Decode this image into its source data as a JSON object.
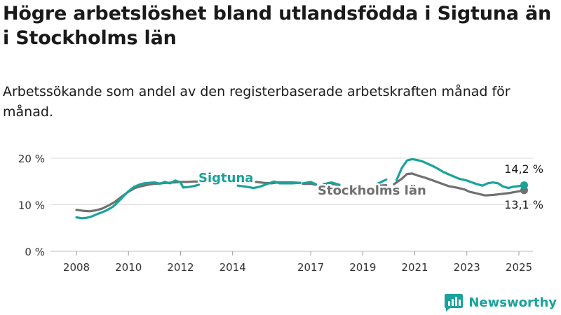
{
  "title": "Högre arbetslöshet bland utlandsfödda i Sigtuna än i Stockholms län",
  "subtitle": "Arbetssökande som andel av den registerbaserade arbetskraften månad för månad.",
  "brand": "Newsworthy",
  "colors": {
    "sigtuna": "#1aa39a",
    "stockholm": "#707070",
    "grid": "#d9d9d9",
    "axis": "#333333"
  },
  "chart_data": {
    "type": "line",
    "y_ticks": [
      {
        "value": 0,
        "label": "0 %"
      },
      {
        "value": 10,
        "label": "10 %"
      },
      {
        "value": 20,
        "label": "20 %"
      }
    ],
    "x_ticks": [
      {
        "value": 2008,
        "label": "2008"
      },
      {
        "value": 2010,
        "label": "2010"
      },
      {
        "value": 2012,
        "label": "2012"
      },
      {
        "value": 2014,
        "label": "2014"
      },
      {
        "value": 2017,
        "label": "2017"
      },
      {
        "value": 2019,
        "label": "2019"
      },
      {
        "value": 2021,
        "label": "2021"
      },
      {
        "value": 2023,
        "label": "2023"
      },
      {
        "value": 2025,
        "label": "2025"
      }
    ],
    "ylim": [
      0,
      20
    ],
    "grid": true,
    "series": [
      {
        "name": "Stockholms län",
        "color": "#707070",
        "end_label": "13,1 %",
        "segments": [
          [
            [
              2008.0,
              8.9
            ],
            [
              2008.25,
              8.7
            ],
            [
              2008.5,
              8.6
            ],
            [
              2008.75,
              8.8
            ],
            [
              2009.0,
              9.2
            ],
            [
              2009.25,
              9.9
            ],
            [
              2009.5,
              10.7
            ],
            [
              2009.75,
              11.8
            ],
            [
              2010.0,
              12.8
            ],
            [
              2010.25,
              13.6
            ],
            [
              2010.5,
              14.0
            ],
            [
              2010.75,
              14.3
            ],
            [
              2011.0,
              14.5
            ],
            [
              2011.25,
              14.6
            ],
            [
              2011.5,
              14.7
            ],
            [
              2011.75,
              14.8
            ],
            [
              2012.0,
              14.9
            ],
            [
              2012.25,
              14.9
            ],
            [
              2012.5,
              15.0
            ],
            [
              2012.75,
              15.0
            ]
          ],
          [
            [
              2014.9,
              14.9
            ],
            [
              2015.2,
              14.7
            ],
            [
              2015.5,
              14.6
            ],
            [
              2015.75,
              14.8
            ],
            [
              2016.0,
              14.8
            ],
            [
              2016.3,
              14.8
            ],
            [
              2016.6,
              14.7
            ]
          ],
          [
            [
              2016.7,
              14.5
            ],
            [
              2017.0,
              14.5
            ],
            [
              2017.2,
              14.3
            ]
          ],
          [
            [
              2017.5,
              14.5
            ],
            [
              2017.9,
              14.4
            ],
            [
              2018.1,
              14.2
            ]
          ],
          [
            [
              2019.6,
              14.1
            ],
            [
              2019.9,
              14.2
            ]
          ],
          [
            [
              2020.2,
              14.4
            ],
            [
              2020.5,
              15.6
            ],
            [
              2020.7,
              16.6
            ],
            [
              2020.9,
              16.7
            ],
            [
              2021.1,
              16.3
            ],
            [
              2021.4,
              15.8
            ],
            [
              2021.7,
              15.2
            ],
            [
              2022.0,
              14.6
            ],
            [
              2022.3,
              14.0
            ],
            [
              2022.6,
              13.7
            ],
            [
              2022.9,
              13.3
            ],
            [
              2023.1,
              12.8
            ],
            [
              2023.4,
              12.4
            ],
            [
              2023.7,
              12.0
            ],
            [
              2024.0,
              12.1
            ],
            [
              2024.3,
              12.3
            ],
            [
              2024.6,
              12.5
            ],
            [
              2024.9,
              12.8
            ],
            [
              2025.2,
              13.1
            ]
          ]
        ]
      },
      {
        "name": "Sigtuna",
        "color": "#1aa39a",
        "end_label": "14,2 %",
        "segments": [
          [
            [
              2008.0,
              7.3
            ],
            [
              2008.2,
              7.1
            ],
            [
              2008.4,
              7.2
            ],
            [
              2008.6,
              7.5
            ],
            [
              2008.8,
              8.0
            ],
            [
              2009.0,
              8.4
            ],
            [
              2009.2,
              8.9
            ],
            [
              2009.4,
              9.6
            ],
            [
              2009.6,
              10.6
            ],
            [
              2009.8,
              11.8
            ],
            [
              2010.0,
              12.9
            ],
            [
              2010.2,
              13.8
            ],
            [
              2010.4,
              14.3
            ],
            [
              2010.6,
              14.6
            ],
            [
              2010.8,
              14.7
            ],
            [
              2011.0,
              14.8
            ],
            [
              2011.2,
              14.5
            ],
            [
              2011.4,
              14.9
            ],
            [
              2011.6,
              14.6
            ],
            [
              2011.8,
              15.2
            ],
            [
              2012.0,
              14.8
            ],
            [
              2012.1,
              13.7
            ],
            [
              2012.3,
              13.8
            ],
            [
              2012.5,
              14.0
            ],
            [
              2012.7,
              14.3
            ]
          ],
          [
            [
              2014.2,
              14.1
            ],
            [
              2014.5,
              13.9
            ],
            [
              2014.8,
              13.6
            ],
            [
              2015.0,
              13.8
            ],
            [
              2015.3,
              14.4
            ],
            [
              2015.6,
              15.0
            ],
            [
              2015.8,
              14.6
            ],
            [
              2016.0,
              14.6
            ],
            [
              2016.3,
              14.6
            ],
            [
              2016.6,
              14.7
            ]
          ],
          [
            [
              2016.7,
              14.6
            ],
            [
              2017.0,
              14.9
            ],
            [
              2017.2,
              14.4
            ]
          ],
          [
            [
              2017.5,
              14.4
            ],
            [
              2017.8,
              14.8
            ],
            [
              2018.1,
              14.3
            ]
          ],
          [
            [
              2019.6,
              14.6
            ],
            [
              2019.9,
              15.4
            ]
          ],
          [
            [
              2020.3,
              15.3
            ],
            [
              2020.5,
              17.9
            ],
            [
              2020.7,
              19.5
            ],
            [
              2020.9,
              19.8
            ],
            [
              2021.1,
              19.6
            ],
            [
              2021.3,
              19.3
            ],
            [
              2021.5,
              18.8
            ],
            [
              2021.7,
              18.3
            ],
            [
              2021.9,
              17.7
            ],
            [
              2022.1,
              17.0
            ],
            [
              2022.4,
              16.3
            ],
            [
              2022.7,
              15.6
            ],
            [
              2023.0,
              15.2
            ],
            [
              2023.2,
              14.8
            ],
            [
              2023.4,
              14.4
            ],
            [
              2023.6,
              14.1
            ],
            [
              2023.8,
              14.6
            ],
            [
              2024.0,
              14.8
            ],
            [
              2024.2,
              14.6
            ],
            [
              2024.4,
              13.9
            ],
            [
              2024.6,
              13.6
            ],
            [
              2024.8,
              13.9
            ],
            [
              2025.0,
              14.0
            ],
            [
              2025.2,
              14.2
            ]
          ]
        ]
      }
    ]
  }
}
